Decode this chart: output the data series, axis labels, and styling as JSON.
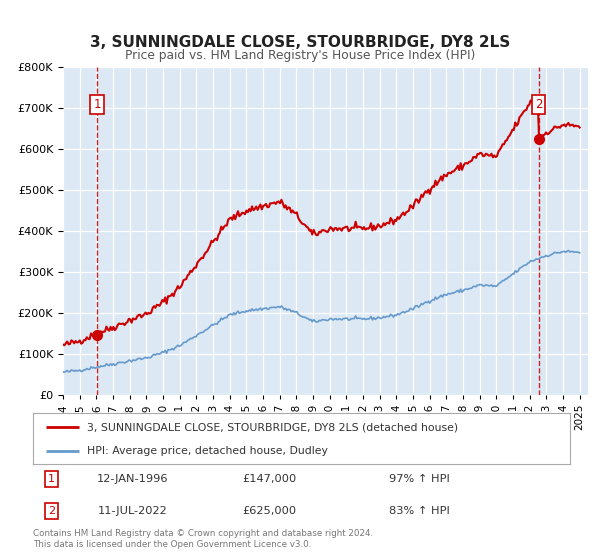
{
  "title": "3, SUNNINGDALE CLOSE, STOURBRIDGE, DY8 2LS",
  "subtitle": "Price paid vs. HM Land Registry's House Price Index (HPI)",
  "legend_line1": "3, SUNNINGDALE CLOSE, STOURBRIDGE, DY8 2LS (detached house)",
  "legend_line2": "HPI: Average price, detached house, Dudley",
  "sale1_date": "12-JAN-1996",
  "sale1_price": 147000,
  "sale1_hpi": "97% ↑ HPI",
  "sale2_date": "11-JUL-2022",
  "sale2_price": 625000,
  "sale2_hpi": "83% ↑ HPI",
  "footer": "Contains HM Land Registry data © Crown copyright and database right 2024.\nThis data is licensed under the Open Government Licence v3.0.",
  "red_color": "#cc0000",
  "blue_color": "#6699cc",
  "bg_color": "#dce9f5",
  "grid_color": "#ffffff",
  "ylim": [
    0,
    800000
  ],
  "yticks": [
    0,
    100000,
    200000,
    300000,
    400000,
    500000,
    600000,
    700000,
    800000
  ],
  "sale1_x": 1996.04,
  "sale2_x": 2022.54,
  "hpi_key_years": [
    1994,
    1995,
    1996,
    1997,
    1998,
    1999,
    2000,
    2001,
    2002,
    2003,
    2004,
    2005,
    2006,
    2007,
    2008,
    2009,
    2010,
    2011,
    2012,
    2013,
    2014,
    2015,
    2016,
    2017,
    2018,
    2019,
    2020,
    2021,
    2022,
    2023,
    2024,
    2025
  ],
  "hpi_key_vals": [
    55000,
    60000,
    68000,
    75000,
    83000,
    90000,
    103000,
    120000,
    145000,
    170000,
    195000,
    205000,
    210000,
    215000,
    200000,
    178000,
    185000,
    185000,
    185000,
    188000,
    195000,
    210000,
    230000,
    245000,
    255000,
    268000,
    265000,
    295000,
    325000,
    340000,
    350000,
    348000
  ]
}
